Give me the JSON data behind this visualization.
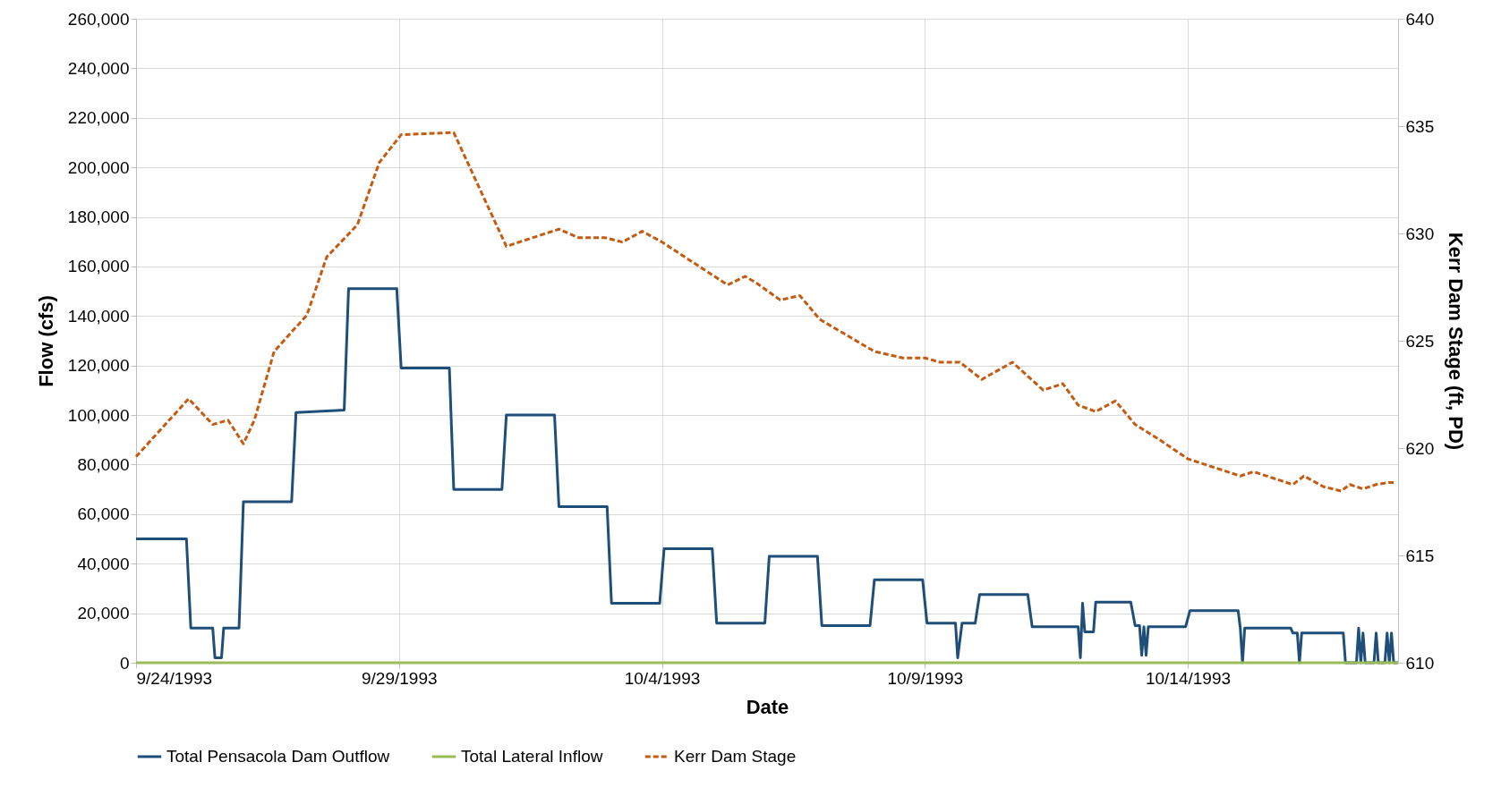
{
  "chart_data": {
    "type": "line",
    "xlabel": "Date",
    "ylabel": "Flow (cfs)",
    "y2label": "Kerr Dam Stage (ft, PD)",
    "xlim": [
      "1993-09-24",
      "1993-10-18"
    ],
    "xticks": [
      {
        "value": "1993-09-24",
        "label": "9/24/1993"
      },
      {
        "value": "1993-09-29",
        "label": "9/29/1993"
      },
      {
        "value": "1993-10-04",
        "label": "10/4/1993"
      },
      {
        "value": "1993-10-09",
        "label": "10/9/1993"
      },
      {
        "value": "1993-10-14",
        "label": "10/14/1993"
      }
    ],
    "ylim": [
      0,
      260000
    ],
    "yticks": [
      0,
      {
        "value": 20000,
        "label": "20,000"
      },
      {
        "value": 40000,
        "label": "40,000"
      },
      {
        "value": 60000,
        "label": "60,000"
      },
      {
        "value": 80000,
        "label": "80,000"
      },
      {
        "value": 100000,
        "label": "100,000"
      },
      {
        "value": 120000,
        "label": "120,000"
      },
      {
        "value": 140000,
        "label": "140,000"
      },
      {
        "value": 160000,
        "label": "160,000"
      },
      {
        "value": 180000,
        "label": "180,000"
      },
      {
        "value": 200000,
        "label": "200,000"
      },
      {
        "value": 220000,
        "label": "220,000"
      },
      {
        "value": 240000,
        "label": "240,000"
      },
      {
        "value": 260000,
        "label": "260,000"
      }
    ],
    "y2lim": [
      610,
      640
    ],
    "y2ticks": [
      610,
      615,
      620,
      625,
      630,
      635,
      640
    ],
    "grid": true,
    "legend": "bottom",
    "series": [
      {
        "name": "Total Pensacola Dam Outflow",
        "color": "#1f4e79",
        "line_style": "solid",
        "x": [
          "1993-09-24T00:00",
          "1993-09-24T23:00",
          "1993-09-25T01:00",
          "1993-09-25T11:00",
          "1993-09-25T12:00",
          "1993-09-25T15:00",
          "1993-09-25T16:00",
          "1993-09-25T23:00",
          "1993-09-26T01:00",
          "1993-09-26T23:00",
          "1993-09-27T01:00",
          "1993-09-27T23:00",
          "1993-09-28T01:00",
          "1993-09-28T23:00",
          "1993-09-29T01:00",
          "1993-09-29T23:00",
          "1993-09-30T01:00",
          "1993-09-30T23:00",
          "1993-10-01T01:00",
          "1993-10-01T23:00",
          "1993-10-02T01:00",
          "1993-10-02T23:00",
          "1993-10-03T01:00",
          "1993-10-03T23:00",
          "1993-10-04T01:00",
          "1993-10-04T23:00",
          "1993-10-05T01:00",
          "1993-10-05T23:00",
          "1993-10-06T01:00",
          "1993-10-06T23:00",
          "1993-10-07T01:00",
          "1993-10-07T23:00",
          "1993-10-08T01:00",
          "1993-10-08T23:00",
          "1993-10-09T01:00",
          "1993-10-09T14:00",
          "1993-10-09T15:00",
          "1993-10-09T17:00",
          "1993-10-09T23:00",
          "1993-10-10T01:00",
          "1993-10-10T23:00",
          "1993-10-11T01:00",
          "1993-10-11T22:00",
          "1993-10-11T23:00",
          "1993-10-12T00:00",
          "1993-10-12T01:00",
          "1993-10-12T05:00",
          "1993-10-12T06:00",
          "1993-10-12T22:00",
          "1993-10-13T00:00",
          "1993-10-13T02:00",
          "1993-10-13T03:00",
          "1993-10-13T04:00",
          "1993-10-13T05:00",
          "1993-10-13T06:00",
          "1993-10-13T23:00",
          "1993-10-14T01:00",
          "1993-10-14T23:00",
          "1993-10-15T00:00",
          "1993-10-15T01:00",
          "1993-10-15T02:00",
          "1993-10-15T23:00",
          "1993-10-16T00:00",
          "1993-10-16T02:00",
          "1993-10-16T03:00",
          "1993-10-16T04:00",
          "1993-10-16T23:00",
          "1993-10-17T00:00",
          "1993-10-17T05:00",
          "1993-10-17T06:00",
          "1993-10-17T07:00",
          "1993-10-17T08:00",
          "1993-10-17T09:00",
          "1993-10-17T13:00",
          "1993-10-17T14:00",
          "1993-10-17T15:00",
          "1993-10-17T18:00",
          "1993-10-17T19:00",
          "1993-10-17T20:00",
          "1993-10-17T21:00",
          "1993-10-17T22:00",
          "1993-10-18T00:00"
        ],
        "values": [
          50000,
          50000,
          14000,
          14000,
          2000,
          2000,
          14000,
          14000,
          65000,
          65000,
          101000,
          102000,
          151000,
          151000,
          119000,
          119000,
          70000,
          70000,
          100000,
          100000,
          63000,
          63000,
          24000,
          24000,
          46000,
          46000,
          16000,
          16000,
          43000,
          43000,
          15000,
          15000,
          33500,
          33500,
          16000,
          16000,
          2000,
          16000,
          16000,
          27500,
          27500,
          14500,
          14500,
          2000,
          24000,
          12500,
          12500,
          24500,
          24500,
          15000,
          15000,
          3000,
          14500,
          3000,
          14500,
          14500,
          21000,
          21000,
          14000,
          0,
          14000,
          14000,
          12000,
          12000,
          0,
          12000,
          12000,
          0,
          0,
          14000,
          0,
          12000,
          0,
          0,
          12000,
          0,
          0,
          12000,
          0,
          12000,
          0,
          0
        ]
      },
      {
        "name": "Total Lateral Inflow",
        "color": "#9bbb59",
        "line_style": "solid",
        "x": [
          "1993-09-24T00:00",
          "1993-10-18T00:00"
        ],
        "values": [
          0,
          0
        ]
      },
      {
        "name": "Kerr Dam Stage",
        "color": "#c55a11",
        "line_style": "dashed",
        "axis": "y2",
        "x": [
          "1993-09-24T00:00",
          "1993-09-25T00:00",
          "1993-09-25T11:00",
          "1993-09-25T18:00",
          "1993-09-26T01:00",
          "1993-09-26T06:00",
          "1993-09-26T15:00",
          "1993-09-27T06:00",
          "1993-09-27T15:00",
          "1993-09-28T05:00",
          "1993-09-28T15:00",
          "1993-09-29T01:00",
          "1993-09-30T01:00",
          "1993-10-01T01:00",
          "1993-10-02T01:00",
          "1993-10-02T10:00",
          "1993-10-02T22:00",
          "1993-10-03T06:00",
          "1993-10-03T15:00",
          "1993-10-04T00:00",
          "1993-10-05T06:00",
          "1993-10-05T14:00",
          "1993-10-05T19:00",
          "1993-10-06T06:00",
          "1993-10-06T15:00",
          "1993-10-07T00:00",
          "1993-10-08T01:00",
          "1993-10-08T14:00",
          "1993-10-09T00:00",
          "1993-10-09T07:00",
          "1993-10-09T16:00",
          "1993-10-10T02:00",
          "1993-10-10T16:00",
          "1993-10-11T06:00",
          "1993-10-11T15:00",
          "1993-10-11T22:00",
          "1993-10-12T06:00",
          "1993-10-12T15:00",
          "1993-10-13T00:00",
          "1993-10-13T11:00",
          "1993-10-14T00:00",
          "1993-10-15T00:00",
          "1993-10-15T06:00",
          "1993-10-16T00:00",
          "1993-10-16T05:00",
          "1993-10-16T14:00",
          "1993-10-16T22:00",
          "1993-10-17T02:00",
          "1993-10-17T08:00",
          "1993-10-17T14:00",
          "1993-10-17T20:00",
          "1993-10-17T23:00"
        ],
        "values": [
          619.6,
          622.3,
          621.1,
          621.3,
          620.2,
          621.3,
          624.5,
          626.2,
          628.9,
          630.4,
          633.3,
          634.6,
          634.7,
          629.4,
          630.2,
          629.8,
          629.8,
          629.6,
          630.1,
          629.6,
          627.6,
          628.0,
          627.7,
          626.9,
          627.1,
          626.0,
          624.5,
          624.2,
          624.2,
          624.0,
          624.0,
          623.2,
          624.0,
          622.7,
          623.0,
          622.0,
          621.7,
          622.2,
          621.1,
          620.4,
          619.5,
          618.7,
          618.9,
          618.3,
          618.7,
          618.2,
          618.0,
          618.3,
          618.1,
          618.3,
          618.4,
          618.4
        ]
      }
    ]
  }
}
